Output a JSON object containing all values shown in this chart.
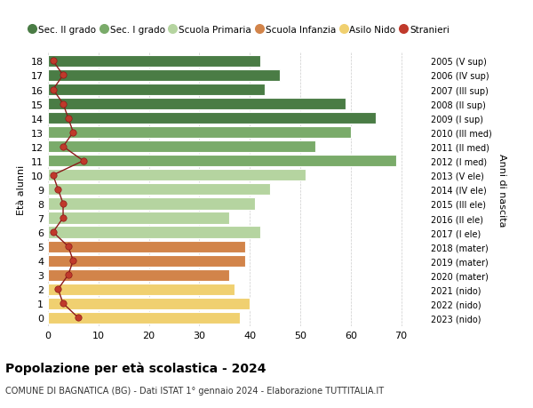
{
  "ages": [
    18,
    17,
    16,
    15,
    14,
    13,
    12,
    11,
    10,
    9,
    8,
    7,
    6,
    5,
    4,
    3,
    2,
    1,
    0
  ],
  "bar_values": [
    42,
    46,
    43,
    59,
    65,
    60,
    53,
    69,
    51,
    44,
    41,
    36,
    42,
    39,
    39,
    36,
    37,
    40,
    38
  ],
  "stranieri_values": [
    1,
    3,
    1,
    3,
    4,
    5,
    3,
    7,
    1,
    2,
    3,
    3,
    1,
    4,
    5,
    4,
    2,
    3,
    6
  ],
  "bar_colors": [
    "#4a7c45",
    "#4a7c45",
    "#4a7c45",
    "#4a7c45",
    "#4a7c45",
    "#7aab6a",
    "#7aab6a",
    "#7aab6a",
    "#b5d4a0",
    "#b5d4a0",
    "#b5d4a0",
    "#b5d4a0",
    "#b5d4a0",
    "#d2844a",
    "#d2844a",
    "#d2844a",
    "#f0d070",
    "#f0d070",
    "#f0d070"
  ],
  "right_labels": [
    "2005 (V sup)",
    "2006 (IV sup)",
    "2007 (III sup)",
    "2008 (II sup)",
    "2009 (I sup)",
    "2010 (III med)",
    "2011 (II med)",
    "2012 (I med)",
    "2013 (V ele)",
    "2014 (IV ele)",
    "2015 (III ele)",
    "2016 (II ele)",
    "2017 (I ele)",
    "2018 (mater)",
    "2019 (mater)",
    "2020 (mater)",
    "2021 (nido)",
    "2022 (nido)",
    "2023 (nido)"
  ],
  "legend_labels": [
    "Sec. II grado",
    "Sec. I grado",
    "Scuola Primaria",
    "Scuola Infanzia",
    "Asilo Nido",
    "Stranieri"
  ],
  "legend_colors": [
    "#4a7c45",
    "#7aab6a",
    "#b5d4a0",
    "#d2844a",
    "#f0d070",
    "#c0392b"
  ],
  "ylabel_left": "Età alunni",
  "ylabel_right": "Anni di nascita",
  "title": "Popolazione per età scolastica - 2024",
  "subtitle": "COMUNE DI BAGNATICA (BG) - Dati ISTAT 1° gennaio 2024 - Elaborazione TUTTITALIA.IT",
  "xlim": [
    0,
    75
  ],
  "xticks": [
    0,
    10,
    20,
    30,
    40,
    50,
    60,
    70
  ],
  "bg_color": "#ffffff",
  "plot_bg_color": "#ffffff",
  "grid_color": "#cccccc",
  "stranieri_line_color": "#8b1a1a",
  "stranieri_dot_color": "#c0392b"
}
